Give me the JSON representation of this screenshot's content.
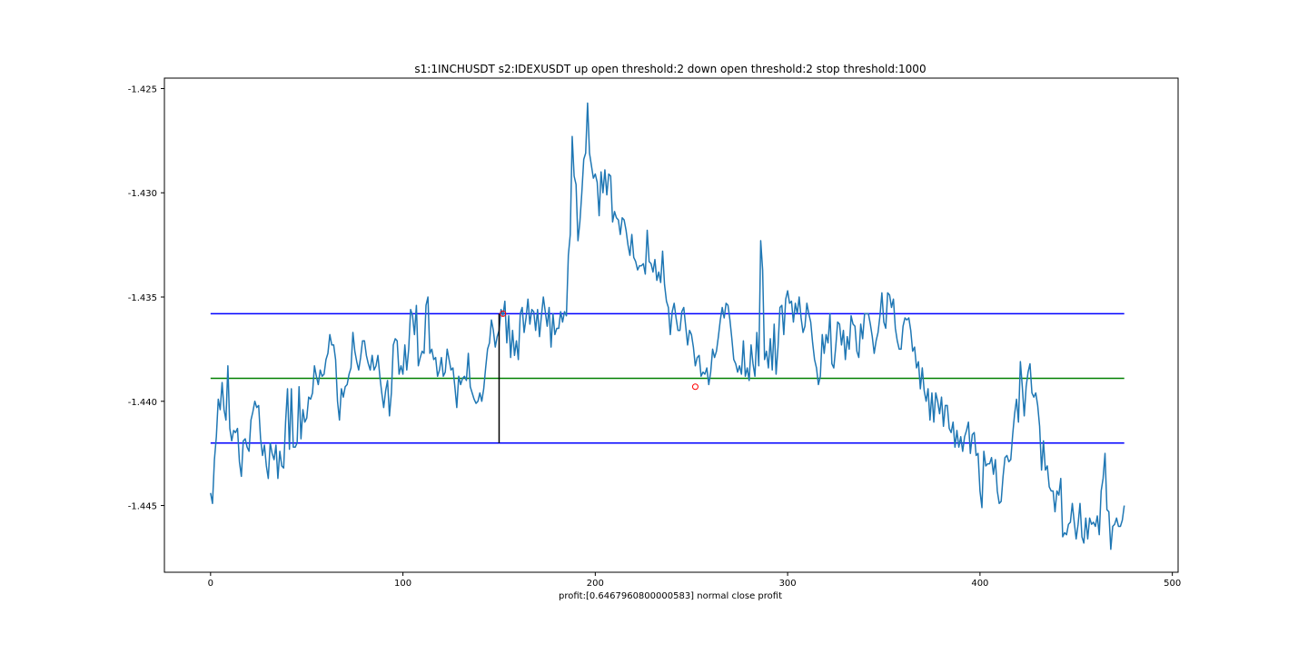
{
  "chart_data": {
    "type": "line",
    "title": "s1:1INCHUSDT s2:IDEXUSDT up open threshold:2 down open threshold:2 stop threshold:1000",
    "xlabel": "profit:[0.6467960800000583] normal close profit",
    "ylabel": "",
    "xlim": [
      -24,
      503
    ],
    "ylim": [
      -1.4482,
      -1.4245
    ],
    "xticks": [
      0,
      100,
      200,
      300,
      400,
      500
    ],
    "yticks": [
      -1.425,
      -1.43,
      -1.435,
      -1.44,
      -1.445
    ],
    "xtick_labels": [
      "0",
      "100",
      "200",
      "300",
      "400",
      "500"
    ],
    "ytick_labels": [
      "-1.425",
      "-1.430",
      "-1.435",
      "-1.440",
      "-1.445"
    ],
    "grid": false,
    "colors": {
      "series": "#1f77b4",
      "upper_threshold": "#0000ff",
      "lower_threshold": "#0000ff",
      "mean": "#008000",
      "open_marker": "#000000",
      "close_marker": "#ff0000"
    },
    "series": [
      {
        "values": [
          -1.4444,
          -1.4449,
          -1.4428,
          -1.4417,
          -1.4399,
          -1.4404,
          -1.4391,
          -1.4404,
          -1.4409,
          -1.4383,
          -1.4413,
          -1.4419,
          -1.4414,
          -1.4415,
          -1.4413,
          -1.4429,
          -1.4436,
          -1.4419,
          -1.4418,
          -1.4422,
          -1.4424,
          -1.4409,
          -1.4405,
          -1.44,
          -1.4403,
          -1.4402,
          -1.4418,
          -1.4426,
          -1.4421,
          -1.4431,
          -1.4437,
          -1.442,
          -1.4425,
          -1.4428,
          -1.4421,
          -1.4437,
          -1.4424,
          -1.4431,
          -1.4432,
          -1.441,
          -1.4394,
          -1.4423,
          -1.4394,
          -1.4422,
          -1.4422,
          -1.442,
          -1.4393,
          -1.4418,
          -1.4404,
          -1.441,
          -1.4408,
          -1.4398,
          -1.4399,
          -1.4396,
          -1.4383,
          -1.4388,
          -1.4392,
          -1.4385,
          -1.4388,
          -1.4387,
          -1.438,
          -1.4377,
          -1.4368,
          -1.4373,
          -1.4373,
          -1.438,
          -1.44,
          -1.4409,
          -1.4394,
          -1.4398,
          -1.4393,
          -1.4392,
          -1.4387,
          -1.4384,
          -1.4367,
          -1.4376,
          -1.4381,
          -1.4385,
          -1.4379,
          -1.4371,
          -1.4371,
          -1.4378,
          -1.4382,
          -1.4385,
          -1.4378,
          -1.4385,
          -1.4383,
          -1.4378,
          -1.4388,
          -1.4396,
          -1.4403,
          -1.4395,
          -1.439,
          -1.4407,
          -1.4396,
          -1.4373,
          -1.437,
          -1.4371,
          -1.4387,
          -1.4383,
          -1.4387,
          -1.4373,
          -1.4385,
          -1.4375,
          -1.4356,
          -1.4359,
          -1.4368,
          -1.4354,
          -1.4383,
          -1.4379,
          -1.4376,
          -1.4377,
          -1.4354,
          -1.435,
          -1.4377,
          -1.4375,
          -1.438,
          -1.4379,
          -1.4388,
          -1.4385,
          -1.4379,
          -1.4388,
          -1.4386,
          -1.4375,
          -1.438,
          -1.4385,
          -1.4384,
          -1.4393,
          -1.4403,
          -1.4388,
          -1.4392,
          -1.4389,
          -1.4388,
          -1.439,
          -1.4377,
          -1.4393,
          -1.4396,
          -1.4399,
          -1.4401,
          -1.44,
          -1.4396,
          -1.44,
          -1.4394,
          -1.4384,
          -1.4375,
          -1.4372,
          -1.4361,
          -1.4366,
          -1.4374,
          -1.4369,
          -1.4366,
          -1.4356,
          -1.4359,
          -1.4352,
          -1.4372,
          -1.4359,
          -1.4379,
          -1.4366,
          -1.4378,
          -1.4371,
          -1.438,
          -1.4358,
          -1.4355,
          -1.4367,
          -1.436,
          -1.4351,
          -1.4363,
          -1.4356,
          -1.4357,
          -1.4366,
          -1.4356,
          -1.4369,
          -1.4359,
          -1.435,
          -1.4357,
          -1.4364,
          -1.4355,
          -1.4374,
          -1.4358,
          -1.4368,
          -1.4365,
          -1.4365,
          -1.4357,
          -1.4362,
          -1.4357,
          -1.4359,
          -1.433,
          -1.432,
          -1.4273,
          -1.4292,
          -1.4296,
          -1.4323,
          -1.4314,
          -1.43,
          -1.4284,
          -1.4281,
          -1.4257,
          -1.4281,
          -1.4287,
          -1.4293,
          -1.4291,
          -1.4295,
          -1.4311,
          -1.429,
          -1.43,
          -1.4289,
          -1.4301,
          -1.4291,
          -1.4292,
          -1.4314,
          -1.4309,
          -1.4312,
          -1.4313,
          -1.432,
          -1.4312,
          -1.4313,
          -1.4318,
          -1.4325,
          -1.433,
          -1.432,
          -1.4331,
          -1.4333,
          -1.4337,
          -1.4335,
          -1.4335,
          -1.4334,
          -1.4339,
          -1.4318,
          -1.4333,
          -1.4334,
          -1.4338,
          -1.4332,
          -1.4342,
          -1.4338,
          -1.4343,
          -1.4328,
          -1.4344,
          -1.4352,
          -1.4355,
          -1.4368,
          -1.4357,
          -1.4353,
          -1.436,
          -1.4366,
          -1.4366,
          -1.4357,
          -1.4355,
          -1.4364,
          -1.4373,
          -1.4366,
          -1.4368,
          -1.4374,
          -1.4383,
          -1.4379,
          -1.4378,
          -1.4388,
          -1.4386,
          -1.4387,
          -1.4384,
          -1.4392,
          -1.4386,
          -1.4375,
          -1.4379,
          -1.4376,
          -1.4369,
          -1.4361,
          -1.4355,
          -1.436,
          -1.4353,
          -1.4354,
          -1.4361,
          -1.437,
          -1.438,
          -1.4382,
          -1.4386,
          -1.4383,
          -1.4387,
          -1.4371,
          -1.4388,
          -1.4384,
          -1.439,
          -1.4373,
          -1.4382,
          -1.4388,
          -1.4367,
          -1.4383,
          -1.4323,
          -1.4337,
          -1.438,
          -1.4376,
          -1.4384,
          -1.437,
          -1.4385,
          -1.4363,
          -1.4387,
          -1.4374,
          -1.4355,
          -1.4354,
          -1.4368,
          -1.4351,
          -1.4347,
          -1.4353,
          -1.4352,
          -1.4362,
          -1.4353,
          -1.4358,
          -1.435,
          -1.436,
          -1.4367,
          -1.4364,
          -1.4353,
          -1.4358,
          -1.4362,
          -1.4372,
          -1.438,
          -1.4384,
          -1.4392,
          -1.4388,
          -1.4368,
          -1.4377,
          -1.4368,
          -1.4372,
          -1.4358,
          -1.4382,
          -1.4384,
          -1.4374,
          -1.4362,
          -1.4363,
          -1.4373,
          -1.4366,
          -1.438,
          -1.4369,
          -1.4375,
          -1.4359,
          -1.4363,
          -1.4364,
          -1.4376,
          -1.4379,
          -1.4363,
          -1.437,
          -1.4358,
          -1.4358,
          -1.4358,
          -1.4363,
          -1.4369,
          -1.4377,
          -1.4371,
          -1.4367,
          -1.4359,
          -1.4348,
          -1.4362,
          -1.4365,
          -1.4348,
          -1.4349,
          -1.4355,
          -1.4351,
          -1.4365,
          -1.4371,
          -1.4375,
          -1.4375,
          -1.4364,
          -1.436,
          -1.4361,
          -1.436,
          -1.4366,
          -1.4376,
          -1.4374,
          -1.4384,
          -1.4381,
          -1.4394,
          -1.4384,
          -1.4395,
          -1.44,
          -1.4394,
          -1.4409,
          -1.4396,
          -1.441,
          -1.4396,
          -1.44,
          -1.4406,
          -1.4398,
          -1.4412,
          -1.4402,
          -1.4402,
          -1.4413,
          -1.4415,
          -1.441,
          -1.4422,
          -1.4414,
          -1.4422,
          -1.4417,
          -1.4424,
          -1.4417,
          -1.4414,
          -1.441,
          -1.4425,
          -1.4416,
          -1.4415,
          -1.4426,
          -1.4425,
          -1.4443,
          -1.4451,
          -1.4424,
          -1.4431,
          -1.443,
          -1.443,
          -1.4427,
          -1.4435,
          -1.4428,
          -1.4443,
          -1.4449,
          -1.4448,
          -1.4436,
          -1.4427,
          -1.4426,
          -1.4429,
          -1.4428,
          -1.4416,
          -1.4406,
          -1.4399,
          -1.441,
          -1.4381,
          -1.4393,
          -1.4407,
          -1.4393,
          -1.4386,
          -1.4382,
          -1.4396,
          -1.4398,
          -1.4396,
          -1.4402,
          -1.4412,
          -1.4433,
          -1.4419,
          -1.4433,
          -1.4431,
          -1.4441,
          -1.4443,
          -1.4443,
          -1.4453,
          -1.4443,
          -1.4445,
          -1.4437,
          -1.4465,
          -1.4463,
          -1.4464,
          -1.4459,
          -1.4458,
          -1.4449,
          -1.4458,
          -1.4466,
          -1.4459,
          -1.4449,
          -1.4465,
          -1.4468,
          -1.4456,
          -1.4466,
          -1.4456,
          -1.4459,
          -1.4458,
          -1.446,
          -1.4455,
          -1.4464,
          -1.4443,
          -1.4437,
          -1.4425,
          -1.4452,
          -1.4453,
          -1.4471,
          -1.446,
          -1.4459,
          -1.4456,
          -1.446,
          -1.446,
          -1.4457,
          -1.445
        ]
      }
    ],
    "hlines": {
      "upper": -1.4358,
      "mean": -1.4389,
      "lower": -1.442
    },
    "open_signal": {
      "x": 150,
      "y_from": -1.442,
      "y_to": -1.4358
    },
    "markers": [
      {
        "x": 152,
        "y": -1.4358
      },
      {
        "x": 252,
        "y": -1.4393
      }
    ]
  }
}
